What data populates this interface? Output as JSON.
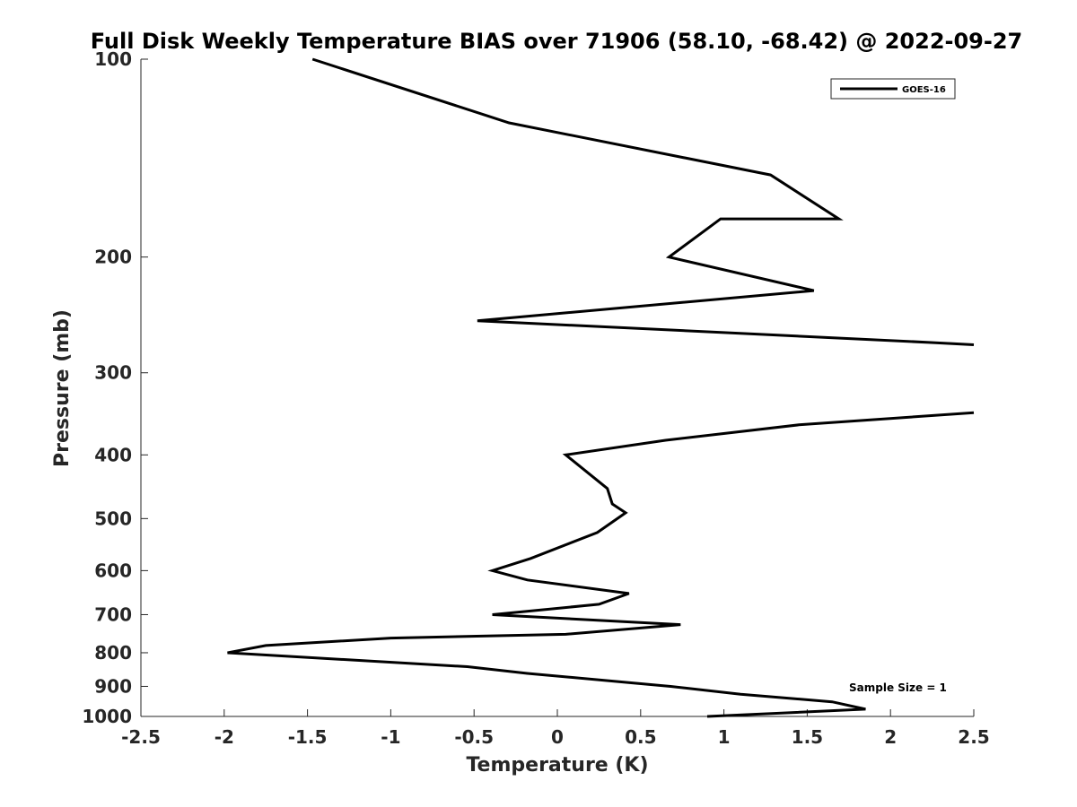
{
  "chart_data": {
    "type": "line",
    "title": "Full Disk Weekly Temperature BIAS over 71906 (58.10, -68.42) @ 2022-09-27",
    "xlabel": "Temperature (K)",
    "ylabel": "Pressure (mb)",
    "xlim": [
      -2.5,
      2.5
    ],
    "ylim": [
      100,
      1000
    ],
    "y_scale": "log",
    "y_reversed": true,
    "x_ticks": [
      -2.5,
      -2,
      -1.5,
      -1,
      -0.5,
      0,
      0.5,
      1,
      1.5,
      2,
      2.5
    ],
    "x_tick_labels": [
      "-2.5",
      "-2",
      "-1.5",
      "-1",
      "-0.5",
      "0",
      "0.5",
      "1",
      "1.5",
      "2",
      "2.5"
    ],
    "y_ticks": [
      100,
      200,
      300,
      400,
      500,
      600,
      700,
      800,
      900,
      1000
    ],
    "y_tick_labels": [
      "100",
      "200",
      "300",
      "400",
      "500",
      "600",
      "700",
      "800",
      "900",
      "1000"
    ],
    "legend": {
      "entries": [
        "GOES-16"
      ],
      "location": "top-right"
    },
    "annotation": "Sample Size = 1",
    "series": [
      {
        "name": "GOES-16",
        "color": "#000000",
        "segments": [
          [
            {
              "x": -1.47,
              "p": 100
            },
            {
              "x": -0.29,
              "p": 125
            },
            {
              "x": 1.28,
              "p": 150
            },
            {
              "x": 1.69,
              "p": 175
            },
            {
              "x": 0.98,
              "p": 175
            },
            {
              "x": 0.98,
              "p": 175
            },
            {
              "x": 0.67,
              "p": 200
            },
            {
              "x": 1.54,
              "p": 225
            },
            {
              "x": -0.48,
              "p": 250
            },
            {
              "x": 2.27,
              "p": 270
            },
            {
              "x": 2.5,
              "p": 272
            }
          ],
          [
            {
              "x": 2.5,
              "p": 345
            },
            {
              "x": 1.45,
              "p": 360
            },
            {
              "x": 0.65,
              "p": 380
            },
            {
              "x": 0.05,
              "p": 400
            },
            {
              "x": 0.3,
              "p": 450
            },
            {
              "x": 0.33,
              "p": 475
            },
            {
              "x": 0.41,
              "p": 490
            },
            {
              "x": 0.24,
              "p": 525
            },
            {
              "x": -0.16,
              "p": 575
            },
            {
              "x": -0.39,
              "p": 600
            },
            {
              "x": -0.18,
              "p": 620
            },
            {
              "x": 0.43,
              "p": 650
            },
            {
              "x": 0.25,
              "p": 675
            },
            {
              "x": -0.39,
              "p": 700
            },
            {
              "x": 0.74,
              "p": 725
            },
            {
              "x": 0.05,
              "p": 750
            },
            {
              "x": -1.0,
              "p": 760
            },
            {
              "x": -1.75,
              "p": 780
            },
            {
              "x": -1.98,
              "p": 800
            },
            {
              "x": -0.54,
              "p": 840
            },
            {
              "x": -0.18,
              "p": 860
            },
            {
              "x": 0.68,
              "p": 900
            },
            {
              "x": 1.1,
              "p": 925
            },
            {
              "x": 1.65,
              "p": 950
            },
            {
              "x": 1.85,
              "p": 975
            },
            {
              "x": 0.9,
              "p": 1000
            }
          ]
        ]
      }
    ]
  }
}
